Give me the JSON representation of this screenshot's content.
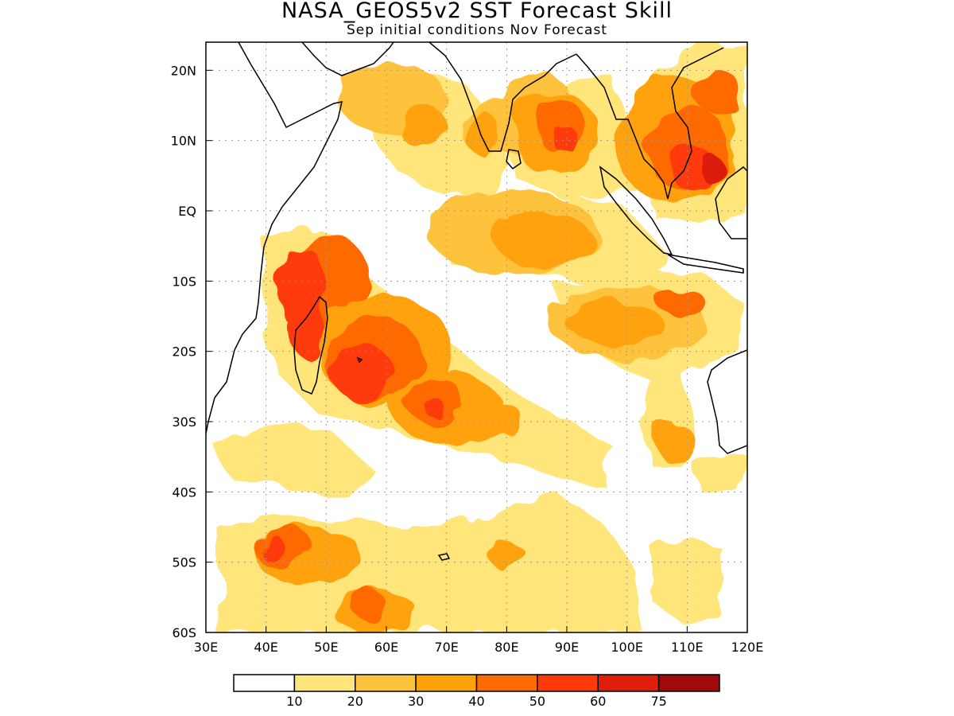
{
  "title": "NASA_GEOS5v2 SST Forecast Skill",
  "subtitle": "Sep initial conditions   Nov Forecast",
  "map": {
    "lon_range": [
      30,
      120
    ],
    "lat_range": [
      -60,
      24
    ],
    "lon_ticks": [
      "30E",
      "40E",
      "50E",
      "60E",
      "70E",
      "80E",
      "90E",
      "100E",
      "110E",
      "120E"
    ],
    "lat_ticks": [
      "20N",
      "10N",
      "EQ",
      "10S",
      "20S",
      "30S",
      "40S",
      "50S",
      "60S"
    ],
    "grid": "dotted"
  },
  "colorbar": {
    "colors": [
      "#ffffff",
      "#ffe57a",
      "#ffc23c",
      "#ffa20a",
      "#ff6a00",
      "#ff3a0a",
      "#dc1e0a",
      "#a00a0a"
    ],
    "labels": [
      "10",
      "20",
      "30",
      "40",
      "50",
      "60",
      "75"
    ]
  },
  "skill_regions": [
    {
      "lon": 61,
      "lat": 16,
      "rx": 9,
      "ry": 5,
      "level": 2
    },
    {
      "lon": 66,
      "lat": 12,
      "rx": 4,
      "ry": 3,
      "level": 3
    },
    {
      "lon": 78,
      "lat": 12,
      "rx": 6,
      "ry": 4,
      "level": 2
    },
    {
      "lon": 76,
      "lat": 11,
      "rx": 3,
      "ry": 3,
      "level": 3
    },
    {
      "lon": 85,
      "lat": 14,
      "rx": 6,
      "ry": 6,
      "level": 2
    },
    {
      "lon": 88,
      "lat": 11,
      "rx": 7,
      "ry": 6,
      "level": 3
    },
    {
      "lon": 89,
      "lat": 12,
      "rx": 4,
      "ry": 4,
      "level": 4
    },
    {
      "lon": 90,
      "lat": 10,
      "rx": 2,
      "ry": 2,
      "level": 5
    },
    {
      "lon": 108,
      "lat": 10,
      "rx": 10,
      "ry": 9,
      "level": 3
    },
    {
      "lon": 110,
      "lat": 9,
      "rx": 7,
      "ry": 6,
      "level": 4
    },
    {
      "lon": 111,
      "lat": 6,
      "rx": 4,
      "ry": 3,
      "level": 5
    },
    {
      "lon": 114,
      "lat": 6,
      "rx": 2,
      "ry": 2,
      "level": 6
    },
    {
      "lon": 115,
      "lat": 17,
      "rx": 4,
      "ry": 3,
      "level": 4
    },
    {
      "lon": 81,
      "lat": -3,
      "rx": 14,
      "ry": 6,
      "level": 2
    },
    {
      "lon": 86,
      "lat": -4,
      "rx": 8,
      "ry": 4,
      "level": 3
    },
    {
      "lon": 50,
      "lat": -10,
      "rx": 7,
      "ry": 7,
      "level": 4
    },
    {
      "lon": 46,
      "lat": -11,
      "rx": 4,
      "ry": 6,
      "level": 5
    },
    {
      "lon": 47,
      "lat": -17,
      "rx": 3,
      "ry": 4,
      "level": 5
    },
    {
      "lon": 60,
      "lat": -20,
      "rx": 11,
      "ry": 8,
      "level": 3
    },
    {
      "lon": 58,
      "lat": -21,
      "rx": 8,
      "ry": 6,
      "level": 4
    },
    {
      "lon": 56,
      "lat": -23,
      "rx": 5,
      "ry": 4,
      "level": 5
    },
    {
      "lon": 70,
      "lat": -28,
      "rx": 9,
      "ry": 5,
      "level": 3
    },
    {
      "lon": 68,
      "lat": -27,
      "rx": 5,
      "ry": 3,
      "level": 4
    },
    {
      "lon": 68,
      "lat": -28,
      "rx": 2,
      "ry": 1,
      "level": 5
    },
    {
      "lon": 77,
      "lat": -30,
      "rx": 6,
      "ry": 3,
      "level": 3
    },
    {
      "lon": 100,
      "lat": -16,
      "rx": 13,
      "ry": 5,
      "level": 2
    },
    {
      "lon": 98,
      "lat": -16,
      "rx": 8,
      "ry": 3,
      "level": 3
    },
    {
      "lon": 109,
      "lat": -13,
      "rx": 4,
      "ry": 2,
      "level": 4
    },
    {
      "lon": 108,
      "lat": -33,
      "rx": 3,
      "ry": 3,
      "level": 3
    },
    {
      "lon": 47,
      "lat": -49,
      "rx": 9,
      "ry": 4,
      "level": 3
    },
    {
      "lon": 43,
      "lat": -48,
      "rx": 5,
      "ry": 3,
      "level": 4
    },
    {
      "lon": 41,
      "lat": -48,
      "rx": 2,
      "ry": 2,
      "level": 5
    },
    {
      "lon": 58,
      "lat": -57,
      "rx": 7,
      "ry": 3,
      "level": 3
    },
    {
      "lon": 57,
      "lat": -56,
      "rx": 3,
      "ry": 2,
      "level": 4
    },
    {
      "lon": 80,
      "lat": -49,
      "rx": 3,
      "ry": 2,
      "level": 3
    },
    {
      "lon": 110,
      "lat": -53,
      "rx": 6,
      "ry": 5,
      "level": 1
    }
  ]
}
